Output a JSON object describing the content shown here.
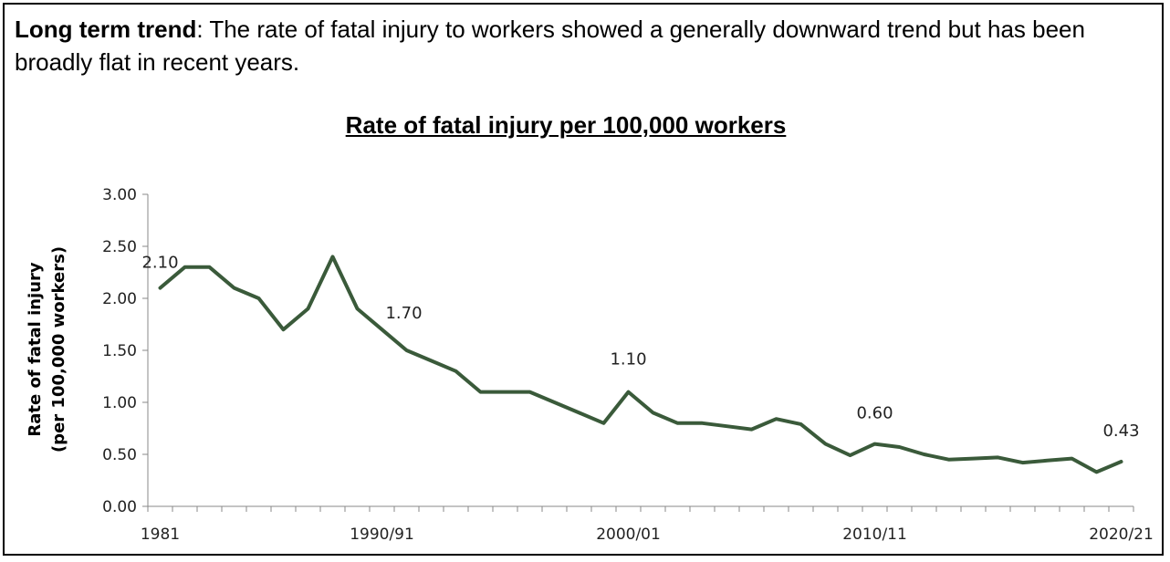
{
  "intro": {
    "bold": "Long term trend",
    "rest": ": The rate of fatal injury to workers showed a generally downward trend but has been broadly flat in recent years."
  },
  "chart_data": {
    "type": "line",
    "title": "Rate of fatal injury per 100,000 workers",
    "ylabel_line1": "Rate of fatal injury",
    "ylabel_line2": "(per 100,000 workers)",
    "ylim": [
      0,
      3
    ],
    "yticks": [
      "0.00",
      "0.50",
      "1.00",
      "1.50",
      "2.00",
      "2.50",
      "3.00"
    ],
    "xtick_labels": [
      {
        "index": 0,
        "label": "1981"
      },
      {
        "index": 9,
        "label": "1990/91"
      },
      {
        "index": 19,
        "label": "2000/01"
      },
      {
        "index": 29,
        "label": "2010/11"
      },
      {
        "index": 39,
        "label": "2020/21"
      }
    ],
    "line_color": "#3a5a3a",
    "values": [
      2.1,
      2.3,
      2.3,
      2.1,
      2.0,
      1.7,
      1.9,
      2.4,
      1.9,
      1.7,
      1.5,
      1.4,
      1.3,
      1.1,
      1.1,
      1.1,
      1.0,
      0.9,
      0.8,
      1.1,
      0.9,
      0.8,
      0.8,
      0.77,
      0.74,
      0.84,
      0.79,
      0.6,
      0.49,
      0.6,
      0.57,
      0.5,
      0.45,
      0.46,
      0.47,
      0.42,
      0.44,
      0.46,
      0.33,
      0.43
    ],
    "data_labels": [
      {
        "index": 0,
        "text": "2.10"
      },
      {
        "index": 9,
        "text": "1.70"
      },
      {
        "index": 19,
        "text": "1.10"
      },
      {
        "index": 29,
        "text": "0.60"
      },
      {
        "index": 39,
        "text": "0.43"
      }
    ],
    "grid": false
  }
}
